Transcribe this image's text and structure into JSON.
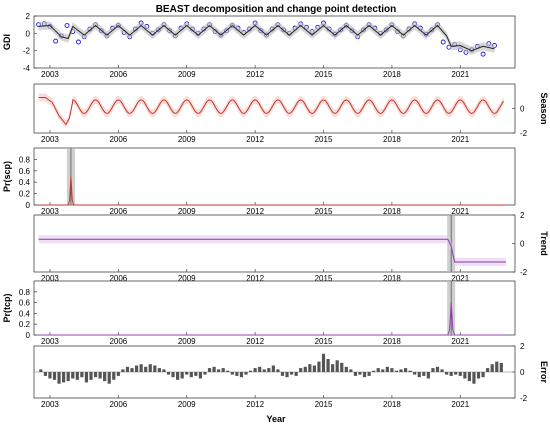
{
  "figure": {
    "title": "BEAST decomposition and change point detection",
    "xlabel": "Year"
  },
  "chart_data": [
    {
      "panel": "gdi",
      "type": "scatter+line",
      "ylabel": "GDI",
      "ylabel_side": "left",
      "xlim": [
        2002.3,
        2023.4
      ],
      "ylim": [
        -4,
        2
      ],
      "yticks": [
        -4,
        -2,
        0,
        2
      ],
      "xticks": [
        2003,
        2006,
        2009,
        2012,
        2015,
        2018,
        2021
      ],
      "series": [
        {
          "role": "observed",
          "marker": "circle",
          "color": "#1a1adb",
          "x": [
            2002.5,
            2002.75,
            2003.0,
            2003.25,
            2003.5,
            2003.75,
            2004.0,
            2004.25,
            2004.5,
            2004.75,
            2005.0,
            2005.25,
            2005.5,
            2005.75,
            2006.0,
            2006.25,
            2006.5,
            2006.75,
            2007.0,
            2007.25,
            2007.5,
            2007.75,
            2008.0,
            2008.25,
            2008.5,
            2008.75,
            2009.0,
            2009.25,
            2009.5,
            2009.75,
            2010.0,
            2010.25,
            2010.5,
            2010.75,
            2011.0,
            2011.25,
            2011.5,
            2011.75,
            2012.0,
            2012.25,
            2012.5,
            2012.75,
            2013.0,
            2013.25,
            2013.5,
            2013.75,
            2014.0,
            2014.25,
            2014.5,
            2014.75,
            2015.0,
            2015.25,
            2015.5,
            2015.75,
            2016.0,
            2016.25,
            2016.5,
            2016.75,
            2017.0,
            2017.25,
            2017.5,
            2017.75,
            2018.0,
            2018.25,
            2018.5,
            2018.75,
            2019.0,
            2019.25,
            2019.5,
            2019.75,
            2020.0,
            2020.25,
            2020.5,
            2020.75,
            2021.0,
            2021.25,
            2021.5,
            2021.75,
            2022.0,
            2022.25,
            2022.5
          ],
          "y": [
            1.0,
            1.1,
            0.8,
            -0.9,
            -0.3,
            0.9,
            0.2,
            -1.0,
            -0.4,
            0.5,
            1.0,
            0.3,
            -0.3,
            0.6,
            0.9,
            0.1,
            -0.4,
            0.5,
            1.2,
            0.8,
            0.0,
            0.4,
            1.0,
            0.3,
            -0.3,
            0.6,
            1.1,
            0.5,
            0.0,
            0.5,
            1.0,
            0.2,
            -0.2,
            0.3,
            0.9,
            0.6,
            0.1,
            0.5,
            1.2,
            0.3,
            -0.2,
            0.5,
            1.0,
            0.4,
            0.0,
            0.6,
            1.1,
            0.7,
            0.2,
            0.7,
            1.2,
            0.5,
            -0.1,
            0.4,
            0.9,
            0.3,
            -0.4,
            0.4,
            1.0,
            0.6,
            0.0,
            0.4,
            1.0,
            0.2,
            -0.3,
            0.5,
            1.1,
            0.6,
            -0.1,
            0.4,
            1.0,
            -1.0,
            -1.6,
            -1.3,
            -1.9,
            -2.2,
            -1.9,
            -1.5,
            -2.4,
            -1.2,
            -1.4
          ]
        },
        {
          "role": "fitted",
          "color": "#222222",
          "x": [
            2002.5,
            2003.0,
            2003.5,
            2003.8,
            2004.0,
            2004.5,
            2005.0,
            2005.5,
            2006.0,
            2006.5,
            2007.0,
            2007.5,
            2008.0,
            2008.5,
            2009.0,
            2009.5,
            2010.0,
            2010.5,
            2011.0,
            2011.5,
            2012.0,
            2012.5,
            2013.0,
            2013.5,
            2014.0,
            2014.5,
            2015.0,
            2015.5,
            2016.0,
            2016.5,
            2017.0,
            2017.5,
            2018.0,
            2018.5,
            2019.0,
            2019.5,
            2020.0,
            2020.4,
            2020.6,
            2021.0,
            2021.5,
            2022.0,
            2022.5
          ],
          "y": [
            0.8,
            0.9,
            -0.4,
            -0.6,
            0.8,
            -0.2,
            0.9,
            -0.2,
            0.9,
            -0.2,
            0.9,
            -0.2,
            0.9,
            -0.2,
            0.9,
            -0.2,
            0.9,
            -0.2,
            0.9,
            -0.2,
            0.9,
            -0.2,
            0.9,
            -0.2,
            0.9,
            -0.2,
            0.9,
            -0.2,
            0.9,
            -0.2,
            0.9,
            -0.2,
            0.9,
            -0.2,
            0.9,
            -0.2,
            0.9,
            -0.3,
            -1.5,
            -1.4,
            -2.0,
            -1.5,
            -1.8
          ]
        }
      ]
    },
    {
      "panel": "season",
      "type": "line",
      "ylabel": "Season",
      "ylabel_side": "right",
      "xlim": [
        2002.3,
        2023.4
      ],
      "ylim": [
        -2,
        2
      ],
      "yticks": [
        -2,
        0
      ],
      "xticks": [
        2003,
        2006,
        2009,
        2012,
        2015,
        2018,
        2021
      ],
      "series": [
        {
          "role": "season",
          "color": "#c0392b",
          "x": [
            2002.5,
            2002.8,
            2003.1,
            2003.4,
            2003.7,
            2003.85,
            2004.0
          ],
          "y": [
            0.9,
            0.9,
            0.5,
            -0.6,
            -1.3,
            -0.8,
            0.6
          ],
          "periodic_from": 2004.0,
          "period": 1.0,
          "amplitude_high": 0.7,
          "amplitude_low": -0.4
        }
      ]
    },
    {
      "panel": "scp",
      "type": "line",
      "ylabel": "Pr(scp)",
      "ylabel_side": "left",
      "xlim": [
        2002.3,
        2023.4
      ],
      "ylim": [
        0,
        1
      ],
      "yticks": [
        0,
        0.2,
        0.4,
        0.6,
        0.8
      ],
      "xticks": [
        2003,
        2006,
        2009,
        2012,
        2015,
        2018,
        2021
      ],
      "changepoints": [
        2003.92
      ],
      "series": [
        {
          "role": "probability",
          "color": "#c0392b",
          "x": [
            2002.5,
            2003.8,
            2003.86,
            2003.92,
            2003.98,
            2004.04,
            2023.0
          ],
          "y": [
            0.0,
            0.0,
            0.08,
            0.5,
            0.08,
            0.0,
            0.0
          ]
        }
      ]
    },
    {
      "panel": "trend",
      "type": "line",
      "ylabel": "Trend",
      "ylabel_side": "right",
      "xlim": [
        2002.3,
        2023.4
      ],
      "ylim": [
        -2,
        2
      ],
      "yticks": [
        -2,
        0,
        2
      ],
      "xticks": [
        2003,
        2006,
        2009,
        2012,
        2015,
        2018,
        2021
      ],
      "changepoints": [
        2020.6
      ],
      "series": [
        {
          "role": "trend",
          "color": "#7b3fb0",
          "x": [
            2002.5,
            2020.45,
            2020.6,
            2020.75,
            2023.0
          ],
          "y": [
            0.3,
            0.3,
            -0.2,
            -1.3,
            -1.3
          ]
        }
      ]
    },
    {
      "panel": "tcp",
      "type": "line",
      "ylabel": "Pr(tcp)",
      "ylabel_side": "left",
      "xlim": [
        2002.3,
        2023.4
      ],
      "ylim": [
        0,
        1
      ],
      "yticks": [
        0,
        0.2,
        0.4,
        0.6,
        0.8
      ],
      "xticks": [
        2003,
        2006,
        2009,
        2012,
        2015,
        2018,
        2021
      ],
      "changepoints": [
        2020.6
      ],
      "series": [
        {
          "role": "probability",
          "color": "#8e44ad",
          "x": [
            2002.5,
            2020.45,
            2020.53,
            2020.6,
            2020.67,
            2020.75,
            2023.0
          ],
          "y": [
            0.0,
            0.0,
            0.1,
            0.6,
            0.1,
            0.0,
            0.0
          ]
        }
      ]
    },
    {
      "panel": "error",
      "type": "bar",
      "ylabel": "Error",
      "ylabel_side": "right",
      "xlabel": "Year",
      "xlim": [
        2002.3,
        2023.4
      ],
      "ylim": [
        -2,
        2
      ],
      "yticks": [
        -2,
        0,
        2
      ],
      "xticks": [
        2003,
        2006,
        2009,
        2012,
        2015,
        2018,
        2021
      ],
      "series": [
        {
          "role": "residual",
          "color": "#555555",
          "x": [
            2002.6,
            2002.8,
            2003.0,
            2003.2,
            2003.4,
            2003.6,
            2003.8,
            2004.0,
            2004.2,
            2004.4,
            2004.6,
            2004.8,
            2005.0,
            2005.2,
            2005.4,
            2005.6,
            2005.8,
            2006.0,
            2006.2,
            2006.4,
            2006.6,
            2006.8,
            2007.0,
            2007.2,
            2007.4,
            2007.6,
            2007.8,
            2008.0,
            2008.2,
            2008.4,
            2008.6,
            2008.8,
            2009.0,
            2009.2,
            2009.4,
            2009.6,
            2009.8,
            2010.0,
            2010.2,
            2010.4,
            2010.6,
            2010.8,
            2011.0,
            2011.2,
            2011.4,
            2011.6,
            2011.8,
            2012.0,
            2012.2,
            2012.4,
            2012.6,
            2012.8,
            2013.0,
            2013.2,
            2013.4,
            2013.6,
            2013.8,
            2014.0,
            2014.2,
            2014.4,
            2014.6,
            2014.8,
            2015.0,
            2015.2,
            2015.4,
            2015.6,
            2015.8,
            2016.0,
            2016.2,
            2016.4,
            2016.6,
            2016.8,
            2017.0,
            2017.2,
            2017.4,
            2017.6,
            2017.8,
            2018.0,
            2018.2,
            2018.4,
            2018.6,
            2018.8,
            2019.0,
            2019.2,
            2019.4,
            2019.6,
            2019.8,
            2020.0,
            2020.2,
            2020.4,
            2020.6,
            2020.8,
            2021.0,
            2021.2,
            2021.4,
            2021.6,
            2021.8,
            2022.0,
            2022.2,
            2022.4,
            2022.6,
            2022.8
          ],
          "y": [
            0.2,
            -0.3,
            -0.5,
            -0.6,
            -0.9,
            -0.8,
            -0.7,
            -0.5,
            -0.6,
            -0.4,
            -0.8,
            -0.6,
            -0.4,
            -0.5,
            -0.7,
            -0.9,
            -0.6,
            -0.3,
            0.2,
            0.4,
            0.3,
            0.5,
            0.6,
            0.4,
            0.6,
            0.5,
            0.3,
            0.2,
            -0.2,
            -0.4,
            -0.6,
            -0.5,
            -0.2,
            -0.4,
            -0.3,
            -0.5,
            -0.2,
            0.3,
            0.4,
            0.2,
            0.3,
            0.1,
            -0.2,
            -0.3,
            -0.4,
            -0.2,
            0.1,
            0.3,
            0.4,
            0.2,
            0.3,
            0.5,
            0.2,
            -0.3,
            -0.4,
            -0.2,
            -0.3,
            0.3,
            0.4,
            0.6,
            0.5,
            0.8,
            1.4,
            1.0,
            0.6,
            0.9,
            0.7,
            0.4,
            0.2,
            -0.3,
            -0.2,
            -0.4,
            -0.3,
            0.1,
            0.3,
            0.2,
            0.4,
            0.3,
            0.1,
            0.2,
            0.3,
            0.1,
            -0.2,
            -0.4,
            -0.3,
            -0.5,
            0.3,
            0.4,
            0.2,
            -0.2,
            -0.3,
            -0.2,
            -0.3,
            -0.5,
            -0.7,
            -0.9,
            -0.5,
            -0.4,
            0.3,
            0.6,
            0.8,
            0.7
          ]
        }
      ]
    }
  ]
}
